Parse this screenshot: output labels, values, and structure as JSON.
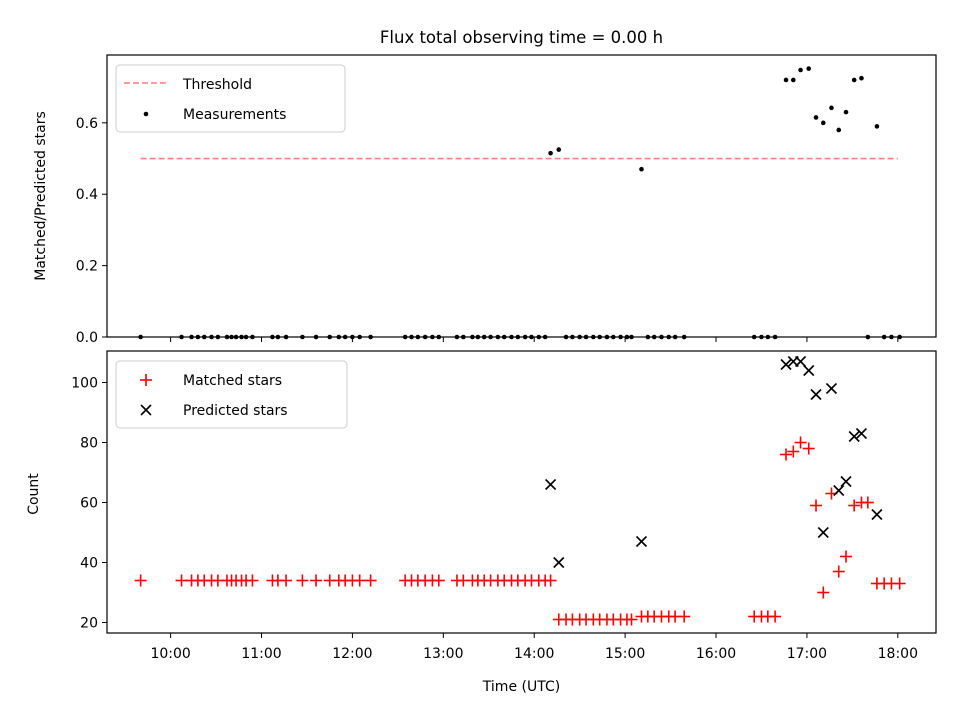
{
  "chart_data": [
    {
      "type": "scatter",
      "title": "Flux total observing time = 0.00 h",
      "ylabel": "Matched/Predicted stars",
      "xlabel": "",
      "xlim": [
        9.3,
        18.42
      ],
      "ylim": [
        0,
        0.79
      ],
      "yticks": [
        0,
        0.2,
        0.4,
        0.6
      ],
      "ytick_labels": [
        "0.0",
        "0.2",
        "0.4",
        "0.6"
      ],
      "legend_position": "upper-left",
      "threshold": {
        "name": "Threshold",
        "color": "#ff7f7f",
        "style": "dashed",
        "y": 0.5,
        "x_range": [
          9.67,
          18.0
        ]
      },
      "series": [
        {
          "name": "Measurements",
          "color": "#000000",
          "marker": "dot",
          "x": [
            9.67,
            10.12,
            10.23,
            10.3,
            10.37,
            10.45,
            10.52,
            10.62,
            10.67,
            10.72,
            10.78,
            10.83,
            10.9,
            11.12,
            11.18,
            11.27,
            11.45,
            11.6,
            11.75,
            11.85,
            11.92,
            12.0,
            12.08,
            12.2,
            12.58,
            12.65,
            12.72,
            12.8,
            12.88,
            12.95,
            13.15,
            13.22,
            13.32,
            13.38,
            13.45,
            13.52,
            13.6,
            13.67,
            13.75,
            13.82,
            13.9,
            13.97,
            14.05,
            14.12,
            14.18,
            14.27,
            14.35,
            14.42,
            14.5,
            14.57,
            14.65,
            14.72,
            14.8,
            14.87,
            14.95,
            15.02,
            15.07,
            15.18,
            15.25,
            15.32,
            15.4,
            15.48,
            15.55,
            15.65,
            16.42,
            16.5,
            16.57,
            16.65,
            16.77,
            16.85,
            16.93,
            17.02,
            17.1,
            17.18,
            17.27,
            17.35,
            17.43,
            17.52,
            17.6,
            17.67,
            17.77,
            17.85,
            17.93,
            18.02
          ],
          "y": [
            0,
            0,
            0,
            0,
            0,
            0,
            0,
            0,
            0,
            0,
            0,
            0,
            0,
            0,
            0,
            0,
            0,
            0,
            0,
            0,
            0,
            0,
            0,
            0,
            0,
            0,
            0,
            0,
            0,
            0,
            0,
            0,
            0,
            0,
            0,
            0,
            0,
            0,
            0,
            0,
            0,
            0,
            0,
            0,
            0.515,
            0.525,
            0,
            0,
            0,
            0,
            0,
            0,
            0,
            0,
            0,
            0,
            0,
            0.47,
            0,
            0,
            0,
            0,
            0,
            0,
            0,
            0,
            0,
            0,
            0.72,
            0.72,
            0.748,
            0.752,
            0.615,
            0.6,
            0.642,
            0.58,
            0.63,
            0.72,
            0.725,
            0,
            0.59,
            0,
            0,
            0
          ]
        }
      ]
    },
    {
      "type": "scatter",
      "title": "",
      "ylabel": "Count",
      "xlabel": "Time (UTC)",
      "xlim": [
        9.3,
        18.42
      ],
      "ylim": [
        16.5,
        110.5
      ],
      "yticks": [
        20,
        40,
        60,
        80,
        100
      ],
      "ytick_labels": [
        "20",
        "40",
        "60",
        "80",
        "100"
      ],
      "xticks": [
        10,
        11,
        12,
        13,
        14,
        15,
        16,
        17,
        18
      ],
      "xtick_labels": [
        "10:00",
        "11:00",
        "12:00",
        "13:00",
        "14:00",
        "15:00",
        "16:00",
        "17:00",
        "18:00"
      ],
      "legend_position": "upper-left",
      "series": [
        {
          "name": "Matched stars",
          "color": "#ff0000",
          "marker": "plus",
          "x": [
            9.67,
            10.12,
            10.23,
            10.3,
            10.37,
            10.45,
            10.52,
            10.62,
            10.67,
            10.72,
            10.78,
            10.83,
            10.9,
            11.12,
            11.18,
            11.27,
            11.45,
            11.6,
            11.75,
            11.85,
            11.92,
            12.0,
            12.08,
            12.2,
            12.58,
            12.65,
            12.72,
            12.8,
            12.88,
            12.95,
            13.15,
            13.22,
            13.32,
            13.38,
            13.45,
            13.52,
            13.6,
            13.67,
            13.75,
            13.82,
            13.9,
            13.97,
            14.05,
            14.12,
            14.18,
            14.27,
            14.35,
            14.42,
            14.5,
            14.57,
            14.65,
            14.72,
            14.8,
            14.87,
            14.95,
            15.02,
            15.07,
            15.18,
            15.25,
            15.32,
            15.4,
            15.48,
            15.55,
            15.65,
            16.42,
            16.5,
            16.57,
            16.65,
            16.77,
            16.85,
            16.93,
            17.02,
            17.1,
            17.18,
            17.27,
            17.35,
            17.43,
            17.52,
            17.6,
            17.67,
            17.77,
            17.85,
            17.93,
            18.02
          ],
          "y": [
            34,
            34,
            34,
            34,
            34,
            34,
            34,
            34,
            34,
            34,
            34,
            34,
            34,
            34,
            34,
            34,
            34,
            34,
            34,
            34,
            34,
            34,
            34,
            34,
            34,
            34,
            34,
            34,
            34,
            34,
            34,
            34,
            34,
            34,
            34,
            34,
            34,
            34,
            34,
            34,
            34,
            34,
            34,
            34,
            34,
            21,
            21,
            21,
            21,
            21,
            21,
            21,
            21,
            21,
            21,
            21,
            21,
            22,
            22,
            22,
            22,
            22,
            22,
            22,
            22,
            22,
            22,
            22,
            76,
            77,
            80,
            78,
            59,
            30,
            63,
            37,
            42,
            59,
            60,
            60,
            33,
            33,
            33,
            33
          ]
        },
        {
          "name": "Predicted stars",
          "color": "#000000",
          "marker": "x",
          "x": [
            14.18,
            14.27,
            15.18,
            16.77,
            16.85,
            16.93,
            17.02,
            17.1,
            17.18,
            17.27,
            17.35,
            17.43,
            17.52,
            17.6,
            17.77
          ],
          "y": [
            66,
            40,
            47,
            106,
            107,
            107,
            104,
            96,
            50,
            98,
            64,
            67,
            82,
            83,
            56
          ]
        }
      ]
    }
  ]
}
